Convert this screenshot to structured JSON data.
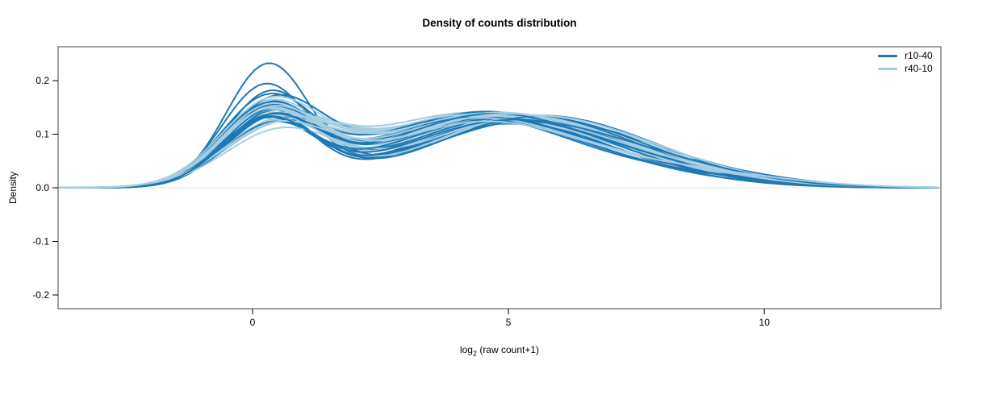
{
  "chart_data": {
    "type": "line",
    "subtype": "density-curves",
    "title": "Density of counts distribution",
    "xlabel_prefix": "log",
    "xlabel_sub": "2",
    "xlabel_rest": " (raw count+1)",
    "ylabel": "Density",
    "xlim": [
      -3.8,
      13.45
    ],
    "ylim": [
      -0.2256,
      0.2632
    ],
    "xticks": [
      {
        "v": 0,
        "label": "0"
      },
      {
        "v": 5,
        "label": "5"
      },
      {
        "v": 10,
        "label": "10"
      }
    ],
    "yticks": [
      {
        "v": -0.2,
        "label": "-0.2"
      },
      {
        "v": -0.1,
        "label": "-0.1"
      },
      {
        "v": 0.0,
        "label": "0.0"
      },
      {
        "v": 0.1,
        "label": "0.1"
      },
      {
        "v": 0.2,
        "label": "0.2"
      }
    ],
    "grid": false,
    "baseline_y": 0,
    "baseline_color": "#e9e9e9",
    "box_color": "#808080",
    "legend": {
      "position": "top-right",
      "frame": false,
      "entries": [
        {
          "label": "r10-40",
          "color": "#1F78B4"
        },
        {
          "label": "r40-10",
          "color": "#A6CEE3"
        }
      ]
    },
    "curve_model": "density(x) = a1*exp(-0.5*((x-m1)/s1)^2) + a2*exp(-0.5*((x-m2)/s2)^2) + a3*exp(-0.5*((x-m3)/s3)^2); params per curve [a1,m1,s1,a2,m2,s2,a3,m3,s3]",
    "series": [
      {
        "name": "r10-40",
        "color": "#1F78B4",
        "line_width": 2,
        "curves": [
          [
            0.225,
            0.3,
            0.82,
            0.118,
            5.0,
            2.0,
            0.02,
            8.0,
            1.8
          ],
          [
            0.186,
            0.25,
            0.85,
            0.112,
            4.8,
            2.0,
            0.024,
            7.8,
            1.9
          ],
          [
            0.175,
            0.36,
            0.88,
            0.118,
            4.9,
            1.9,
            0.018,
            8.3,
            1.7
          ],
          [
            0.158,
            0.3,
            0.92,
            0.128,
            4.5,
            2.1,
            0.026,
            7.4,
            1.9
          ],
          [
            0.15,
            0.42,
            0.95,
            0.132,
            4.2,
            2.0,
            0.022,
            7.9,
            2.0
          ],
          [
            0.148,
            0.22,
            0.9,
            0.118,
            5.0,
            1.9,
            0.03,
            7.6,
            1.8
          ],
          [
            0.145,
            0.35,
            0.88,
            0.125,
            4.6,
            2.1,
            0.016,
            8.6,
            1.7
          ],
          [
            0.143,
            0.28,
            0.93,
            0.135,
            4.4,
            2.0,
            0.02,
            7.2,
            1.9
          ],
          [
            0.14,
            0.45,
            0.97,
            0.112,
            5.2,
            2.0,
            0.034,
            7.8,
            1.9
          ],
          [
            0.138,
            0.32,
            0.9,
            0.126,
            4.7,
            2.2,
            0.024,
            8.1,
            1.8
          ],
          [
            0.136,
            0.26,
            0.94,
            0.13,
            4.3,
            2.0,
            0.018,
            7.5,
            2.0
          ],
          [
            0.134,
            0.4,
            0.92,
            0.12,
            4.9,
            2.1,
            0.028,
            8.4,
            1.8
          ],
          [
            0.132,
            0.3,
            0.96,
            0.124,
            4.5,
            2.0,
            0.022,
            7.7,
            1.9
          ],
          [
            0.13,
            0.36,
            0.89,
            0.116,
            5.1,
            2.0,
            0.032,
            7.3,
            1.8
          ],
          [
            0.128,
            0.24,
            0.92,
            0.128,
            4.4,
            2.1,
            0.02,
            8.0,
            1.9
          ],
          [
            0.126,
            0.44,
            0.95,
            0.122,
            4.8,
            2.0,
            0.026,
            7.6,
            1.8
          ],
          [
            0.125,
            0.33,
            0.91,
            0.132,
            4.2,
            2.1,
            0.018,
            8.2,
            1.9
          ],
          [
            0.124,
            0.28,
            0.94,
            0.118,
            5.0,
            2.0,
            0.03,
            7.1,
            1.8
          ],
          [
            0.122,
            0.38,
            0.9,
            0.126,
            4.6,
            2.1,
            0.024,
            7.9,
            1.9
          ],
          [
            0.12,
            0.3,
            0.93,
            0.13,
            4.3,
            2.0,
            0.02,
            8.5,
            1.7
          ],
          [
            0.118,
            0.42,
            0.96,
            0.114,
            5.3,
            2.0,
            0.034,
            7.4,
            1.9
          ],
          [
            0.12,
            0.26,
            0.9,
            0.124,
            4.7,
            2.1,
            0.022,
            7.8,
            1.8
          ],
          [
            0.123,
            0.35,
            0.93,
            0.128,
            4.5,
            2.0,
            0.026,
            7.2,
            1.9
          ],
          [
            0.121,
            0.31,
            0.91,
            0.12,
            4.9,
            2.1,
            0.028,
            8.0,
            1.8
          ]
        ]
      },
      {
        "name": "r40-10",
        "color": "#A6CEE3",
        "line_width": 2,
        "curves": [
          [
            0.098,
            0.5,
            1.1,
            0.132,
            4.3,
            2.1,
            0.03,
            8.0,
            2.0
          ],
          [
            0.152,
            0.35,
            0.98,
            0.12,
            4.6,
            2.0,
            0.026,
            7.6,
            1.9
          ],
          [
            0.11,
            0.45,
            1.05,
            0.138,
            4.2,
            2.1,
            0.022,
            8.4,
            1.9
          ],
          [
            0.14,
            0.3,
            0.96,
            0.118,
            4.9,
            2.0,
            0.034,
            7.3,
            2.0
          ],
          [
            0.105,
            0.55,
            1.08,
            0.13,
            4.4,
            2.2,
            0.028,
            8.1,
            1.9
          ],
          [
            0.146,
            0.38,
            0.97,
            0.122,
            4.7,
            2.0,
            0.024,
            7.8,
            2.0
          ],
          [
            0.115,
            0.42,
            1.04,
            0.134,
            4.3,
            2.1,
            0.03,
            7.5,
            1.9
          ],
          [
            0.135,
            0.28,
            0.95,
            0.116,
            5.1,
            2.0,
            0.026,
            8.3,
            1.9
          ],
          [
            0.108,
            0.48,
            1.06,
            0.128,
            4.5,
            2.1,
            0.032,
            7.7,
            2.0
          ],
          [
            0.148,
            0.34,
            0.98,
            0.134,
            4.2,
            2.0,
            0.022,
            8.0,
            1.9
          ],
          [
            0.112,
            0.4,
            1.03,
            0.122,
            4.8,
            2.1,
            0.028,
            7.4,
            2.0
          ],
          [
            0.13,
            0.32,
            0.98,
            0.126,
            4.4,
            2.0,
            0.024,
            8.2,
            1.9
          ],
          [
            0.104,
            0.52,
            1.08,
            0.132,
            4.6,
            2.1,
            0.03,
            7.9,
            2.0
          ],
          [
            0.142,
            0.36,
            0.97,
            0.114,
            5.2,
            2.0,
            0.034,
            7.2,
            1.9
          ],
          [
            0.114,
            0.44,
            1.05,
            0.13,
            4.3,
            2.1,
            0.026,
            8.5,
            1.8
          ],
          [
            0.136,
            0.3,
            0.94,
            0.124,
            4.7,
            2.0,
            0.022,
            7.6,
            2.0
          ],
          [
            0.106,
            0.46,
            1.07,
            0.134,
            4.5,
            2.1,
            0.03,
            8.1,
            1.9
          ],
          [
            0.128,
            0.38,
            1.0,
            0.12,
            5.0,
            2.0,
            0.026,
            7.3,
            2.0
          ],
          [
            0.11,
            0.5,
            1.05,
            0.128,
            4.4,
            2.1,
            0.032,
            7.8,
            1.9
          ],
          [
            0.144,
            0.33,
            0.96,
            0.13,
            4.6,
            2.0,
            0.024,
            8.3,
            1.9
          ],
          [
            0.102,
            0.54,
            1.09,
            0.118,
            5.2,
            2.1,
            0.03,
            7.5,
            2.0
          ],
          [
            0.132,
            0.29,
            0.97,
            0.126,
            4.3,
            2.0,
            0.028,
            8.0,
            1.9
          ],
          [
            0.108,
            0.47,
            1.06,
            0.13,
            4.8,
            2.1,
            0.022,
            7.7,
            2.0
          ],
          [
            0.138,
            0.37,
            1.0,
            0.122,
            4.5,
            2.0,
            0.026,
            8.6,
            1.8
          ]
        ]
      }
    ]
  }
}
